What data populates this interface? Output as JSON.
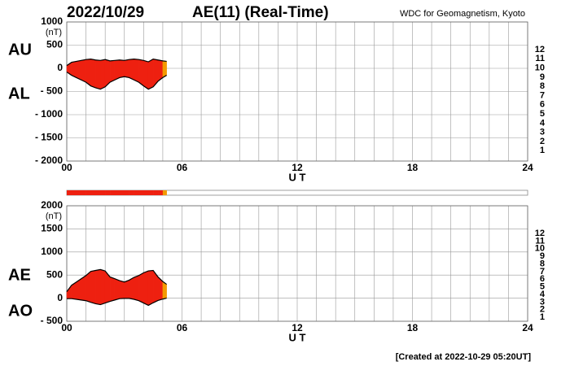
{
  "header": {
    "date": "2022/10/29",
    "title": "AE(11) (Real-Time)",
    "source": "WDC for Geomagnetism, Kyoto"
  },
  "footer": "[Created at 2022-10-29 05:20UT]",
  "station_legend": [
    {
      "label": "12",
      "color": "#e8207a"
    },
    {
      "label": "11",
      "color": "#ee2010"
    },
    {
      "label": "10",
      "color": "#f39a00"
    },
    {
      "label": "9",
      "color": "#f0e020"
    },
    {
      "label": "8",
      "color": "#a0e020"
    },
    {
      "label": "7",
      "color": "#20d0e0"
    },
    {
      "label": "6",
      "color": "#1070e0"
    },
    {
      "label": "5",
      "color": "#2020a0"
    },
    {
      "label": "4",
      "color": "#c020d0"
    },
    {
      "label": "3",
      "color": "#202020"
    },
    {
      "label": "2",
      "color": "#808080"
    },
    {
      "label": "1",
      "color": "#c8c8c8"
    }
  ],
  "chart_data": [
    {
      "type": "line",
      "y_unit": "(nT)",
      "x_label": "U T",
      "x": [
        0,
        0.25,
        0.5,
        0.75,
        1,
        1.25,
        1.5,
        1.75,
        2,
        2.25,
        2.5,
        2.75,
        3,
        3.25,
        3.5,
        3.75,
        4,
        4.25,
        4.5,
        4.75,
        5,
        5.2
      ],
      "series": [
        {
          "name": "AU",
          "color": "#000000",
          "values": [
            60,
            130,
            150,
            170,
            190,
            200,
            180,
            170,
            190,
            160,
            170,
            180,
            170,
            190,
            200,
            190,
            170,
            140,
            200,
            180,
            160,
            150
          ]
        },
        {
          "name": "AL",
          "color": "#000000",
          "values": [
            -80,
            -150,
            -200,
            -250,
            -300,
            -380,
            -420,
            -450,
            -400,
            -300,
            -250,
            -200,
            -180,
            -200,
            -250,
            -300,
            -380,
            -450,
            -400,
            -280,
            -200,
            -150
          ]
        }
      ],
      "stations": [
        11,
        11,
        11,
        11,
        11,
        11,
        11,
        11,
        11,
        11,
        11,
        11,
        11,
        11,
        11,
        11,
        11,
        11,
        11,
        11,
        10,
        9
      ],
      "xlim": [
        0,
        24
      ],
      "xticks": [
        {
          "value": 0,
          "label": "00"
        },
        {
          "value": 6,
          "label": "06"
        },
        12,
        18,
        24
      ],
      "ylim": [
        -2000,
        1000
      ],
      "yticks": [
        {
          "value": -2000,
          "label": "- 2000"
        },
        {
          "value": -1500,
          "label": "- 1500"
        },
        {
          "value": -1000,
          "label": "- 1000"
        },
        {
          "value": -500,
          "label": "- 500"
        },
        0,
        500,
        1000
      ],
      "grid": true
    },
    {
      "type": "line",
      "y_unit": "(nT)",
      "x_label": "U T",
      "x": [
        0,
        0.25,
        0.5,
        0.75,
        1,
        1.25,
        1.5,
        1.75,
        2,
        2.25,
        2.5,
        2.75,
        3,
        3.25,
        3.5,
        3.75,
        4,
        4.25,
        4.5,
        4.75,
        5,
        5.2
      ],
      "series": [
        {
          "name": "AE",
          "color": "#000000",
          "values": [
            140,
            280,
            350,
            420,
            490,
            580,
            600,
            620,
            590,
            460,
            420,
            380,
            350,
            390,
            450,
            490,
            550,
            590,
            600,
            460,
            360,
            300
          ]
        },
        {
          "name": "AO",
          "color": "#000000",
          "values": [
            -10,
            -10,
            -25,
            -40,
            -55,
            -90,
            -120,
            -140,
            -105,
            -70,
            -40,
            -10,
            -5,
            -5,
            -25,
            -55,
            -105,
            -155,
            -100,
            -50,
            -20,
            0
          ]
        }
      ],
      "stations": [
        11,
        11,
        11,
        11,
        11,
        11,
        11,
        11,
        11,
        11,
        11,
        11,
        11,
        11,
        11,
        11,
        11,
        11,
        11,
        11,
        10,
        9
      ],
      "xlim": [
        0,
        24
      ],
      "xticks": [
        {
          "value": 0,
          "label": "00"
        },
        {
          "value": 6,
          "label": "06"
        },
        12,
        18,
        24
      ],
      "ylim": [
        -500,
        2000
      ],
      "yticks": [
        {
          "value": -500,
          "label": "- 500"
        },
        0,
        500,
        1000,
        1500,
        2000
      ],
      "grid": true
    }
  ]
}
